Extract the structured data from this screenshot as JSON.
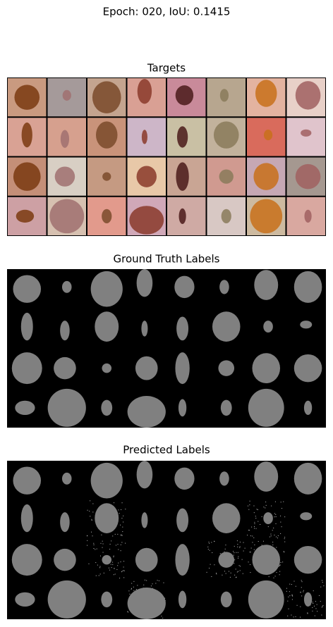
{
  "title": "Epoch: 020, IoU: 0.1415",
  "panels": [
    {
      "title": "Targets"
    },
    {
      "title": "Ground Truth Labels"
    },
    {
      "title": "Predicted Labels"
    }
  ]
}
